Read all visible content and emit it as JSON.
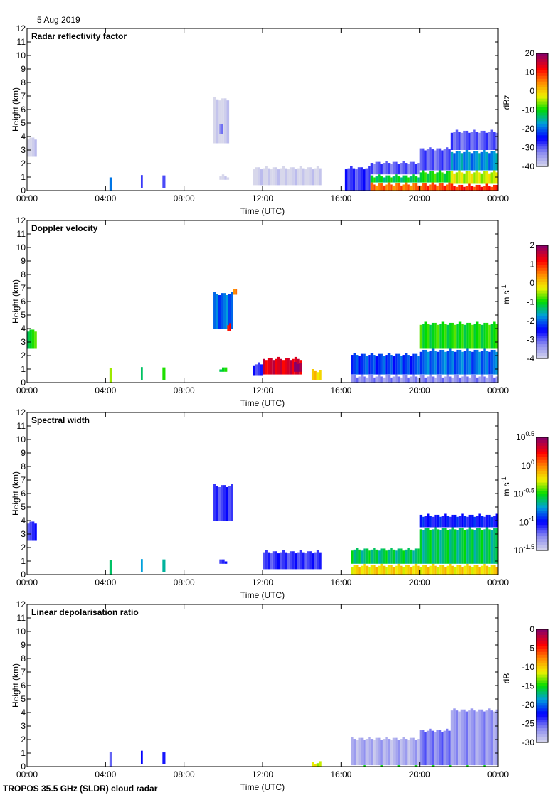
{
  "date_label": "5 Aug 2019",
  "footer": "TROPOS 35.5 GHz (SLDR) cloud radar",
  "chart_data": [
    {
      "type": "heatmap",
      "title": "Radar reflectivity factor",
      "xlabel": "Time (UTC)",
      "ylabel": "Height (km)",
      "xlim": [
        0,
        24
      ],
      "ylim": [
        0,
        12
      ],
      "xticks": [
        "00:00",
        "04:00",
        "08:00",
        "12:00",
        "16:00",
        "20:00",
        "00:00"
      ],
      "yticks": [
        "0",
        "1",
        "2",
        "3",
        "4",
        "5",
        "6",
        "7",
        "8",
        "9",
        "10",
        "11",
        "12"
      ],
      "colorbar": {
        "unit": "dBz",
        "unit_sup": "",
        "range": [
          -40,
          20
        ],
        "ticks": [
          {
            "v": 20,
            "base": "20",
            "exp": ""
          },
          {
            "v": 10,
            "base": "10",
            "exp": ""
          },
          {
            "v": 0,
            "base": "0",
            "exp": ""
          },
          {
            "v": -10,
            "base": "-10",
            "exp": ""
          },
          {
            "v": -20,
            "base": "-20",
            "exp": ""
          },
          {
            "v": -30,
            "base": "-30",
            "exp": ""
          },
          {
            "v": -40,
            "base": "-40",
            "exp": ""
          }
        ]
      },
      "echoes": [
        [
          0.0,
          0.5,
          2.5,
          4.0,
          -40
        ],
        [
          4.2,
          4.35,
          0.0,
          1.2,
          -22
        ],
        [
          5.8,
          5.9,
          0.2,
          1.3,
          -30
        ],
        [
          6.9,
          7.05,
          0.2,
          1.2,
          -30
        ],
        [
          9.5,
          10.3,
          3.5,
          6.9,
          -40
        ],
        [
          9.8,
          10.0,
          4.2,
          5.0,
          -32
        ],
        [
          9.8,
          10.3,
          0.8,
          1.2,
          -40
        ],
        [
          11.5,
          15.0,
          0.4,
          1.8,
          -40
        ],
        [
          16.2,
          17.5,
          0.0,
          1.8,
          -28
        ],
        [
          17.5,
          20.0,
          1.2,
          2.2,
          -30
        ],
        [
          17.5,
          20.0,
          0.6,
          1.2,
          -12
        ],
        [
          17.5,
          20.0,
          0.0,
          0.6,
          6
        ],
        [
          20.0,
          21.6,
          1.5,
          3.2,
          -30
        ],
        [
          20.0,
          21.6,
          0.6,
          1.5,
          -10
        ],
        [
          20.0,
          21.6,
          0.0,
          0.6,
          8
        ],
        [
          21.6,
          24.0,
          3.0,
          4.5,
          -30
        ],
        [
          21.6,
          24.0,
          1.5,
          3.0,
          -18
        ],
        [
          21.6,
          24.0,
          0.5,
          1.5,
          -4
        ],
        [
          21.6,
          24.0,
          0.0,
          0.5,
          10
        ]
      ]
    },
    {
      "type": "heatmap",
      "title": "Doppler velocity",
      "xlabel": "Time (UTC)",
      "ylabel": "Height (km)",
      "xlim": [
        0,
        24
      ],
      "ylim": [
        0,
        12
      ],
      "xticks": [
        "00:00",
        "04:00",
        "08:00",
        "12:00",
        "16:00",
        "20:00",
        "00:00"
      ],
      "yticks": [
        "0",
        "1",
        "2",
        "3",
        "4",
        "5",
        "6",
        "7",
        "8",
        "9",
        "10",
        "11",
        "12"
      ],
      "colorbar": {
        "unit": "m s",
        "unit_sup": "-1",
        "range": [
          -4,
          2
        ],
        "ticks": [
          {
            "v": 2,
            "base": "2",
            "exp": ""
          },
          {
            "v": 1,
            "base": "1",
            "exp": ""
          },
          {
            "v": 0,
            "base": "0",
            "exp": ""
          },
          {
            "v": -1,
            "base": "-1",
            "exp": ""
          },
          {
            "v": -2,
            "base": "-2",
            "exp": ""
          },
          {
            "v": -3,
            "base": "-3",
            "exp": ""
          },
          {
            "v": -4,
            "base": "-4",
            "exp": ""
          }
        ]
      },
      "echoes": [
        [
          0.0,
          0.5,
          2.5,
          4.0,
          -1.0
        ],
        [
          4.2,
          4.35,
          0.0,
          1.3,
          -0.8
        ],
        [
          5.8,
          5.9,
          0.2,
          1.3,
          -1.5
        ],
        [
          6.9,
          7.05,
          0.2,
          1.2,
          -1.0
        ],
        [
          9.5,
          10.5,
          4.0,
          6.7,
          -2.0
        ],
        [
          10.5,
          10.7,
          6.5,
          7.0,
          0.5
        ],
        [
          10.2,
          10.4,
          3.8,
          4.4,
          1.2
        ],
        [
          9.8,
          10.2,
          0.8,
          1.2,
          -1.0
        ],
        [
          11.5,
          12.0,
          0.5,
          1.5,
          -2.8
        ],
        [
          12.0,
          14.0,
          0.6,
          1.9,
          1.4
        ],
        [
          13.6,
          14.0,
          0.8,
          1.6,
          1.9
        ],
        [
          14.5,
          15.0,
          0.2,
          1.0,
          0.0
        ],
        [
          16.5,
          24.0,
          0.0,
          0.6,
          -3.3
        ],
        [
          16.5,
          20.0,
          0.6,
          2.2,
          -2.2
        ],
        [
          20.0,
          24.0,
          0.6,
          2.5,
          -2.0
        ],
        [
          20.0,
          24.0,
          2.5,
          4.5,
          -1.0
        ]
      ]
    },
    {
      "type": "heatmap",
      "title": "Spectral width",
      "xlabel": "Time (UTC)",
      "ylabel": "Height (km)",
      "xlim": [
        0,
        24
      ],
      "ylim": [
        0,
        12
      ],
      "xticks": [
        "00:00",
        "04:00",
        "08:00",
        "12:00",
        "16:00",
        "20:00",
        "00:00"
      ],
      "yticks": [
        "0",
        "1",
        "2",
        "3",
        "4",
        "5",
        "6",
        "7",
        "8",
        "9",
        "10",
        "11",
        "12"
      ],
      "colorbar": {
        "unit": "m s",
        "unit_sup": "-1",
        "scale": "log",
        "range": [
          -1.5,
          0.5
        ],
        "ticks": [
          {
            "v": 0.5,
            "base": "10",
            "exp": "0.5"
          },
          {
            "v": 0,
            "base": "10",
            "exp": "0"
          },
          {
            "v": -0.5,
            "base": "10",
            "exp": "-0.5"
          },
          {
            "v": -1,
            "base": "10",
            "exp": "-1"
          },
          {
            "v": -1.5,
            "base": "10",
            "exp": "-1.5"
          }
        ]
      },
      "echoes": [
        [
          0.0,
          0.5,
          2.5,
          4.0,
          -1.1
        ],
        [
          4.2,
          4.35,
          0.0,
          1.3,
          -0.7
        ],
        [
          5.8,
          5.9,
          0.2,
          1.3,
          -0.8
        ],
        [
          6.9,
          7.05,
          0.2,
          1.2,
          -0.7
        ],
        [
          9.5,
          10.5,
          4.0,
          6.7,
          -1.1
        ],
        [
          9.8,
          10.2,
          0.8,
          1.2,
          -1.1
        ],
        [
          12.0,
          15.0,
          0.4,
          1.8,
          -1.1
        ],
        [
          16.5,
          24.0,
          0.0,
          0.8,
          -0.2
        ],
        [
          16.5,
          20.0,
          0.8,
          2.0,
          -0.6
        ],
        [
          20.0,
          24.0,
          0.8,
          3.5,
          -0.6
        ],
        [
          20.0,
          24.0,
          3.5,
          4.5,
          -1.0
        ]
      ]
    },
    {
      "type": "heatmap",
      "title": "Linear depolarisation ratio",
      "xlabel": "Time (UTC)",
      "ylabel": "Height (km)",
      "xlim": [
        0,
        24
      ],
      "ylim": [
        0,
        12
      ],
      "xticks": [
        "00:00",
        "04:00",
        "08:00",
        "12:00",
        "16:00",
        "20:00",
        "00:00"
      ],
      "yticks": [
        "0",
        "1",
        "2",
        "3",
        "4",
        "5",
        "6",
        "7",
        "8",
        "9",
        "10",
        "11",
        "12"
      ],
      "colorbar": {
        "unit": "dB",
        "unit_sup": "",
        "range": [
          -30,
          0
        ],
        "ticks": [
          {
            "v": 0,
            "base": "0",
            "exp": ""
          },
          {
            "v": -5,
            "base": "-5",
            "exp": ""
          },
          {
            "v": -10,
            "base": "-10",
            "exp": ""
          },
          {
            "v": -15,
            "base": "-15",
            "exp": ""
          },
          {
            "v": -20,
            "base": "-20",
            "exp": ""
          },
          {
            "v": -25,
            "base": "-25",
            "exp": ""
          },
          {
            "v": -30,
            "base": "-30",
            "exp": ""
          }
        ]
      },
      "echoes": [
        [
          4.2,
          4.35,
          0.0,
          1.3,
          -24
        ],
        [
          5.8,
          5.9,
          0.2,
          1.4,
          -24
        ],
        [
          6.9,
          7.05,
          0.2,
          1.2,
          -24
        ],
        [
          14.5,
          15.0,
          0.0,
          0.4,
          -12
        ],
        [
          16.5,
          20.0,
          0.1,
          2.2,
          -28
        ],
        [
          20.0,
          21.6,
          0.1,
          2.8,
          -26
        ],
        [
          21.6,
          24.0,
          0.1,
          4.3,
          -27
        ],
        [
          16.5,
          24.0,
          0.0,
          0.1,
          -15
        ]
      ]
    }
  ]
}
